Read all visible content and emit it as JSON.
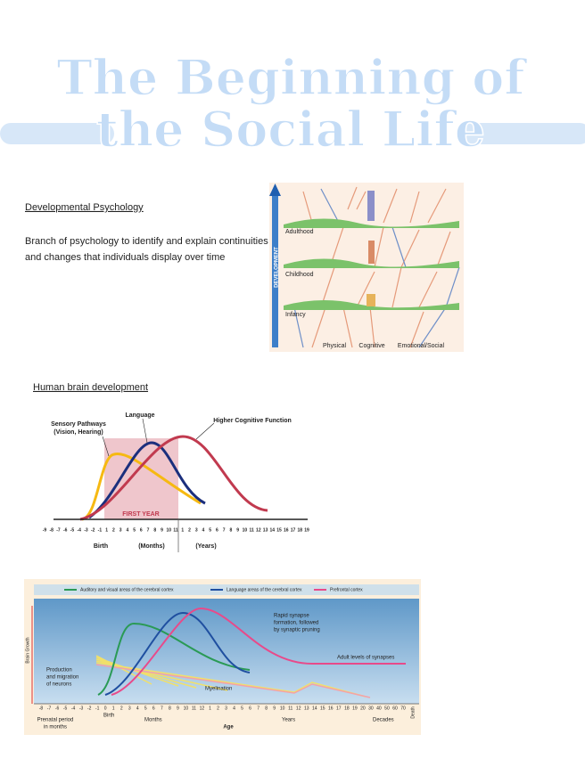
{
  "title": [
    "The Beginning of",
    "the Social Life"
  ],
  "definition": {
    "term": "Developmental Psychology",
    "text": [
      "Branch of psychology to identify and explain continuities",
      "and changes that individuals display over time"
    ]
  },
  "figure1": {
    "axis": "DEVELOPMENT",
    "stages": [
      "Adulthood",
      "Childhood",
      "Infancy"
    ],
    "domains": [
      "Physical",
      "Cognitive",
      "Emotional/Social"
    ]
  },
  "brain": {
    "heading": "Human brain development",
    "curves": [
      "Sensory Pathways",
      "(Vision, Hearing)",
      "Language",
      "Higher Cognitive Function"
    ],
    "band": "FIRST YEAR",
    "ticks": [
      "-9",
      "-8",
      "-7",
      "-6",
      "-5",
      "-4",
      "-3",
      "-2",
      "-1",
      "1",
      "2",
      "3",
      "4",
      "5",
      "6",
      "7",
      "8",
      "9",
      "10",
      "11",
      "1",
      "2",
      "3",
      "4",
      "5",
      "6",
      "7",
      "8",
      "9",
      "10",
      "11",
      "12",
      "13",
      "14",
      "15",
      "16",
      "17",
      "18",
      "19"
    ],
    "axis_labels": [
      "Birth",
      "(Months)",
      "(Years)"
    ]
  },
  "figure3": {
    "legend": [
      "Auditory and visual areas of the cerebral cortex",
      "Language areas of the cerebral cortex",
      "Prefrontal cortex"
    ],
    "annotations": [
      "Rapid synapse",
      "formation, followed",
      "by synaptic pruning",
      "Adult levels of synapses",
      "Production",
      "and migration",
      "of neurons",
      "Myelination"
    ],
    "y_label": "Brain Growth",
    "ticks": [
      "-8",
      "-7",
      "-6",
      "-5",
      "-4",
      "-3",
      "-2",
      "-1",
      "0",
      "1",
      "2",
      "3",
      "4",
      "5",
      "6",
      "7",
      "8",
      "9",
      "10",
      "11",
      "12",
      "1",
      "2",
      "3",
      "4",
      "5",
      "6",
      "7",
      "8",
      "9",
      "10",
      "11",
      "12",
      "13",
      "14",
      "15",
      "16",
      "17",
      "18",
      "19",
      "20",
      "30",
      "40",
      "50",
      "60",
      "70"
    ],
    "groups": [
      "Birth",
      "Months",
      "Years",
      "Decades",
      "Death"
    ],
    "prenatal": [
      "Prenatal period",
      "in months"
    ],
    "x_label": "Age"
  }
}
